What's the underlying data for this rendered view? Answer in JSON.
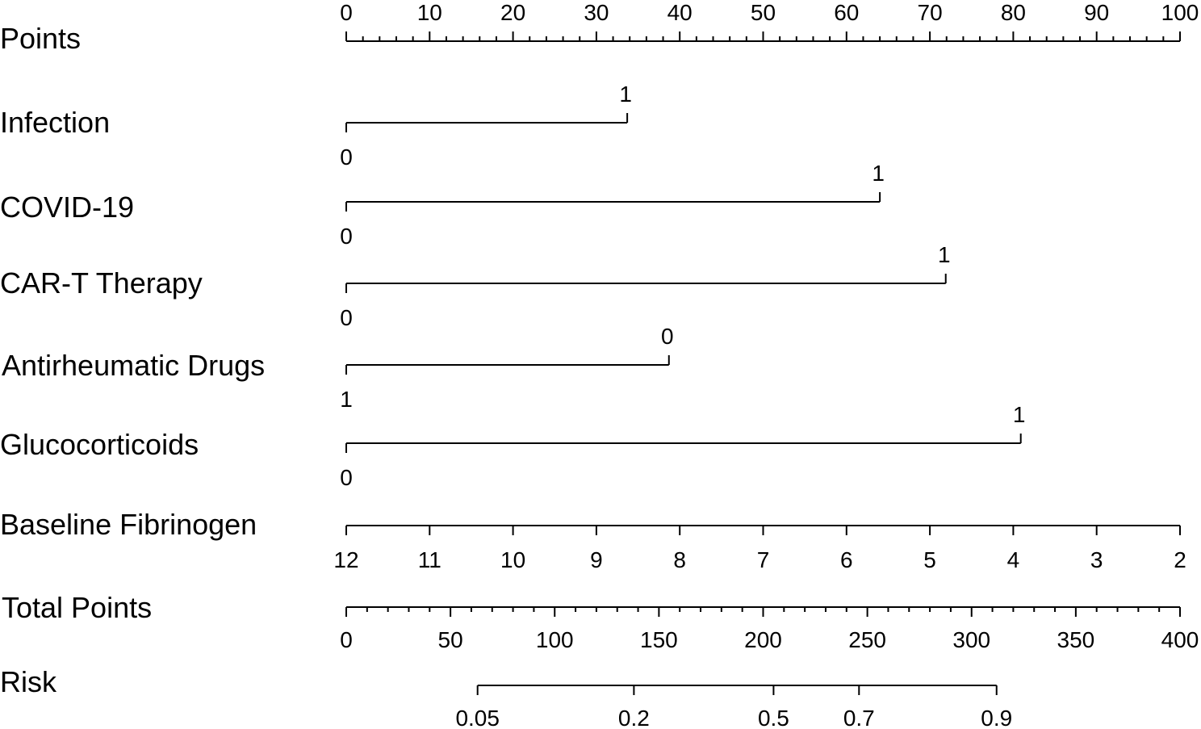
{
  "chart_data": {
    "type": "nomogram",
    "points_axis": {
      "label": "Points",
      "min": 0,
      "max": 100,
      "tick_labels": [
        "0",
        "10",
        "20",
        "30",
        "40",
        "50",
        "60",
        "70",
        "80",
        "90",
        "100"
      ]
    },
    "variables": [
      {
        "label": "Infection",
        "levels": [
          {
            "text": "0",
            "points": 0
          },
          {
            "text": "1",
            "points": 33.7
          }
        ]
      },
      {
        "label": "COVID-19",
        "levels": [
          {
            "text": "0",
            "points": 0
          },
          {
            "text": "1",
            "points": 64
          }
        ]
      },
      {
        "label": "CAR-T Therapy",
        "levels": [
          {
            "text": "0",
            "points": 0
          },
          {
            "text": "1",
            "points": 71.9
          }
        ]
      },
      {
        "label": "Antirheumatic Drugs",
        "levels": [
          {
            "text": "1",
            "points": 0
          },
          {
            "text": "0",
            "points": 38.7
          }
        ]
      },
      {
        "label": "Glucocorticoids",
        "levels": [
          {
            "text": "0",
            "points": 0
          },
          {
            "text": "1",
            "points": 80.9
          }
        ]
      }
    ],
    "fibrinogen": {
      "label": "Baseline Fibrinogen",
      "ticks": [
        {
          "text": "12",
          "points": 0
        },
        {
          "text": "11",
          "points": 10
        },
        {
          "text": "10",
          "points": 20
        },
        {
          "text": "9",
          "points": 30
        },
        {
          "text": "8",
          "points": 40
        },
        {
          "text": "7",
          "points": 50
        },
        {
          "text": "6",
          "points": 60
        },
        {
          "text": "5",
          "points": 70
        },
        {
          "text": "4",
          "points": 80
        },
        {
          "text": "3",
          "points": 90
        },
        {
          "text": "2",
          "points": 100
        }
      ]
    },
    "total_points": {
      "label": "Total Points",
      "min": 0,
      "max": 400,
      "tick_labels": [
        "0",
        "50",
        "100",
        "150",
        "200",
        "250",
        "300",
        "350",
        "400"
      ]
    },
    "risk": {
      "label": "Risk",
      "ticks": [
        {
          "text": "0.05",
          "total": 63
        },
        {
          "text": "0.2",
          "total": 138
        },
        {
          "text": "0.5",
          "total": 205
        },
        {
          "text": "0.7",
          "total": 246
        },
        {
          "text": "0.9",
          "total": 312
        }
      ]
    }
  }
}
